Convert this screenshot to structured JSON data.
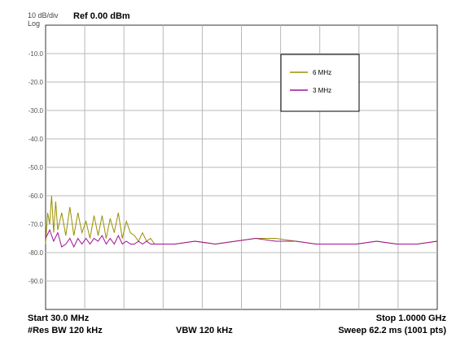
{
  "header": {
    "scale": "10 dB/div",
    "scale_type": "Log",
    "ref_level": "Ref 0.00 dBm"
  },
  "footer": {
    "start": "Start 30.0 MHz",
    "stop": "Stop 1.0000 GHz",
    "res_bw": "#Res BW 120 kHz",
    "vbw": "VBW 120 kHz",
    "sweep": "Sweep  62.2 ms (1001 pts)"
  },
  "chart_data": {
    "type": "line",
    "ylabel": "",
    "xlabel": "",
    "xlim": [
      30,
      1000
    ],
    "x_unit": "MHz",
    "ylim": [
      -100,
      0
    ],
    "y_unit": "dBm",
    "yticks": [
      "-10.0",
      "-20.0",
      "-30.0",
      "-40.0",
      "-50.0",
      "-60.0",
      "-70.0",
      "-80.0",
      "-90.0"
    ],
    "grid": true,
    "legend_position": "top-right",
    "series": [
      {
        "name": "6 MHz",
        "color": "#9a9000",
        "points": [
          [
            30,
            -77
          ],
          [
            35,
            -66
          ],
          [
            40,
            -70
          ],
          [
            45,
            -60
          ],
          [
            50,
            -73
          ],
          [
            55,
            -62
          ],
          [
            60,
            -72
          ],
          [
            70,
            -66
          ],
          [
            80,
            -74
          ],
          [
            90,
            -64
          ],
          [
            100,
            -74
          ],
          [
            110,
            -66
          ],
          [
            120,
            -73
          ],
          [
            130,
            -69
          ],
          [
            140,
            -75
          ],
          [
            150,
            -67
          ],
          [
            160,
            -74
          ],
          [
            170,
            -67
          ],
          [
            180,
            -75
          ],
          [
            190,
            -68
          ],
          [
            200,
            -73
          ],
          [
            210,
            -66
          ],
          [
            220,
            -75
          ],
          [
            230,
            -69
          ],
          [
            240,
            -73
          ],
          [
            250,
            -74
          ],
          [
            260,
            -76
          ],
          [
            270,
            -73
          ],
          [
            280,
            -76
          ],
          [
            290,
            -75
          ],
          [
            300,
            -77
          ],
          [
            350,
            -77
          ],
          [
            400,
            -76
          ],
          [
            450,
            -77
          ],
          [
            500,
            -76
          ],
          [
            550,
            -75
          ],
          [
            600,
            -75
          ],
          [
            650,
            -76
          ],
          [
            700,
            -77
          ],
          [
            750,
            -77
          ],
          [
            800,
            -77
          ],
          [
            850,
            -76
          ],
          [
            900,
            -77
          ],
          [
            950,
            -77
          ],
          [
            1000,
            -76
          ]
        ]
      },
      {
        "name": "3 MHz",
        "color": "#a0109a",
        "points": [
          [
            30,
            -75
          ],
          [
            40,
            -72
          ],
          [
            50,
            -76
          ],
          [
            60,
            -73
          ],
          [
            70,
            -78
          ],
          [
            80,
            -77
          ],
          [
            90,
            -75
          ],
          [
            100,
            -78
          ],
          [
            110,
            -75
          ],
          [
            120,
            -77
          ],
          [
            130,
            -75
          ],
          [
            140,
            -77
          ],
          [
            150,
            -75
          ],
          [
            160,
            -76
          ],
          [
            170,
            -74
          ],
          [
            180,
            -77
          ],
          [
            190,
            -75
          ],
          [
            200,
            -77
          ],
          [
            210,
            -74
          ],
          [
            220,
            -77
          ],
          [
            230,
            -76
          ],
          [
            240,
            -77
          ],
          [
            250,
            -77
          ],
          [
            260,
            -76
          ],
          [
            270,
            -77
          ],
          [
            280,
            -76
          ],
          [
            290,
            -77
          ],
          [
            300,
            -77
          ],
          [
            350,
            -77
          ],
          [
            400,
            -76
          ],
          [
            450,
            -77
          ],
          [
            500,
            -76
          ],
          [
            550,
            -75
          ],
          [
            600,
            -76
          ],
          [
            650,
            -76
          ],
          [
            700,
            -77
          ],
          [
            750,
            -77
          ],
          [
            800,
            -77
          ],
          [
            850,
            -76
          ],
          [
            900,
            -77
          ],
          [
            950,
            -77
          ],
          [
            1000,
            -76
          ]
        ]
      }
    ]
  }
}
